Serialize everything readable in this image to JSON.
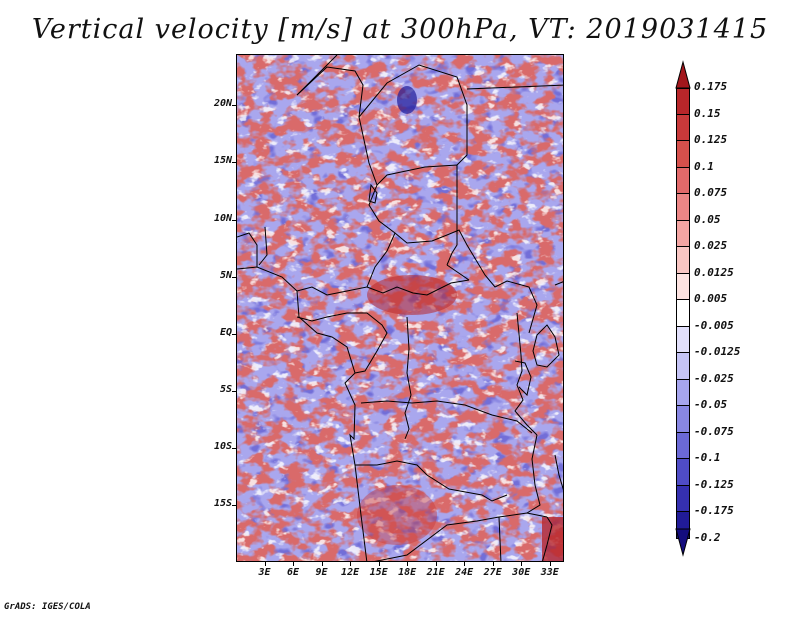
{
  "title": "Vertical velocity [m/s] at 300hPa, VT: 2019031415",
  "footer": "GrADS: IGES/COLA",
  "map": {
    "region": "Central Africa",
    "lat_labels": [
      "20N",
      "15N",
      "10N",
      "5N",
      "EQ",
      "5S",
      "10S",
      "15S"
    ],
    "lat_values": [
      20,
      15,
      10,
      5,
      0,
      -5,
      -10,
      -15
    ],
    "lon_labels": [
      "3E",
      "6E",
      "9E",
      "12E",
      "15E",
      "18E",
      "21E",
      "24E",
      "27E",
      "30E",
      "33E"
    ],
    "lon_values": [
      3,
      6,
      9,
      12,
      15,
      18,
      21,
      24,
      27,
      30,
      33
    ],
    "lat_range": [
      -20,
      24.5
    ],
    "lon_range": [
      0,
      34.5
    ]
  },
  "colorbar": {
    "labels": [
      "0.175",
      "0.15",
      "0.125",
      "0.1",
      "0.075",
      "0.05",
      "0.025",
      "0.0125",
      "0.005",
      "-0.005",
      "-0.0125",
      "-0.025",
      "-0.05",
      "-0.075",
      "-0.1",
      "-0.125",
      "-0.175",
      "-0.2"
    ],
    "colors": [
      "#a3161c",
      "#b8262a",
      "#c8393a",
      "#d6504c",
      "#e2696a",
      "#ec8686",
      "#f4a5a3",
      "#f9c6c3",
      "#fde3e1",
      "#ffffff",
      "#e2e0fb",
      "#c5c4f6",
      "#a6a5ee",
      "#8887e3",
      "#6b69d6",
      "#4f4cc6",
      "#3530b0",
      "#211b98",
      "#140d7e"
    ]
  }
}
